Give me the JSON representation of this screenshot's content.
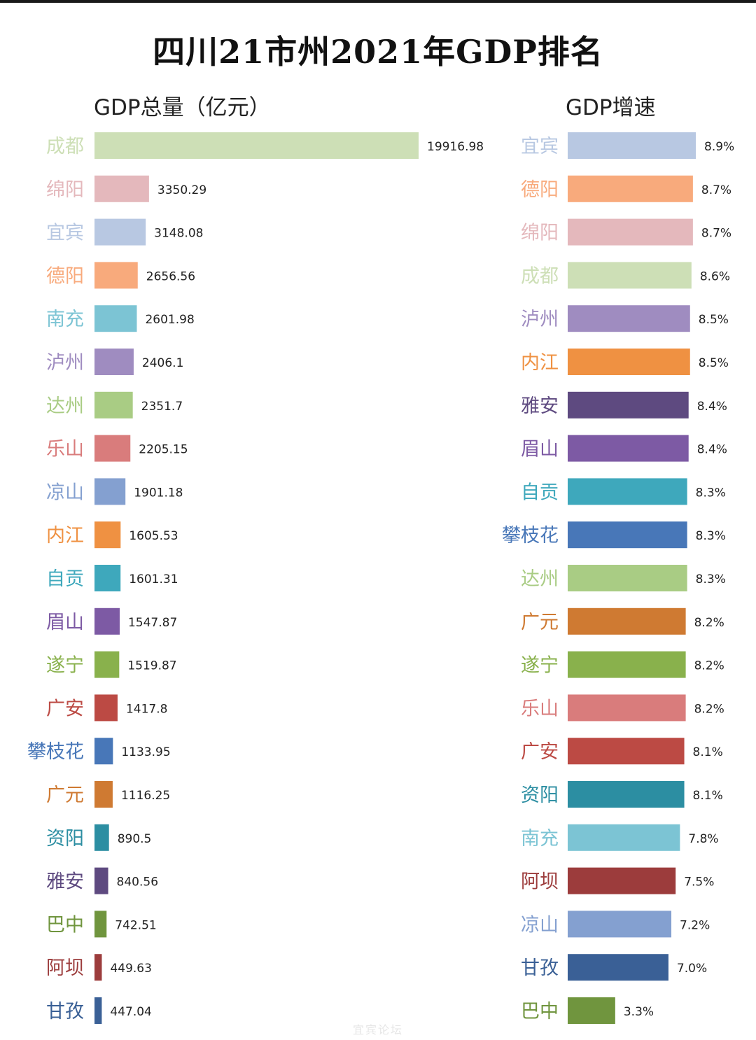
{
  "title": "四川21市州2021年GDP排名",
  "watermark": "宜宾论坛",
  "chart_data": [
    {
      "type": "bar",
      "orientation": "horizontal",
      "title": "GDP总量（亿元）",
      "categories": [
        "成都",
        "绵阳",
        "宜宾",
        "德阳",
        "南充",
        "泸州",
        "达州",
        "乐山",
        "凉山",
        "内江",
        "自贡",
        "眉山",
        "遂宁",
        "广安",
        "攀枝花",
        "广元",
        "资阳",
        "雅安",
        "巴中",
        "阿坝",
        "甘孜"
      ],
      "values": [
        19916.98,
        3350.29,
        3148.08,
        2656.56,
        2601.98,
        2406.1,
        2351.7,
        2205.15,
        1901.18,
        1605.53,
        1601.31,
        1547.87,
        1519.87,
        1417.8,
        1133.95,
        1116.25,
        890.5,
        840.56,
        742.51,
        449.63,
        447.04
      ],
      "value_labels": [
        "19916.98",
        "3350.29",
        "3148.08",
        "2656.56",
        "2601.98",
        "2406.1",
        "2351.7",
        "2205.15",
        "1901.18",
        "1605.53",
        "1601.31",
        "1547.87",
        "1519.87",
        "1417.8",
        "1133.95",
        "1116.25",
        "890.5",
        "840.56",
        "742.51",
        "449.63",
        "447.04"
      ],
      "colors": [
        "#cddfb6",
        "#e4b8bc",
        "#b8c8e2",
        "#f8aa7c",
        "#7cc4d4",
        "#9f8cc0",
        "#a9cc84",
        "#d97c7c",
        "#84a0d0",
        "#ef9142",
        "#3ea8bc",
        "#7d5aa4",
        "#89b14c",
        "#bc4a44",
        "#4877b8",
        "#cf7a32",
        "#2c8ea2",
        "#5e4a80",
        "#70953e",
        "#9c3c3c",
        "#3a6096"
      ],
      "grid": false,
      "legend": "none"
    },
    {
      "type": "bar",
      "orientation": "horizontal",
      "title": "GDP增速",
      "categories": [
        "宜宾",
        "德阳",
        "绵阳",
        "成都",
        "泸州",
        "内江",
        "雅安",
        "眉山",
        "自贡",
        "攀枝花",
        "达州",
        "广元",
        "遂宁",
        "乐山",
        "广安",
        "资阳",
        "南充",
        "阿坝",
        "凉山",
        "甘孜",
        "巴中"
      ],
      "values": [
        8.9,
        8.7,
        8.7,
        8.6,
        8.5,
        8.5,
        8.4,
        8.4,
        8.3,
        8.3,
        8.3,
        8.2,
        8.2,
        8.2,
        8.1,
        8.1,
        7.8,
        7.5,
        7.2,
        7.0,
        3.3
      ],
      "value_labels": [
        "8.9%",
        "8.7%",
        "8.7%",
        "8.6%",
        "8.5%",
        "8.5%",
        "8.4%",
        "8.4%",
        "8.3%",
        "8.3%",
        "8.3%",
        "8.2%",
        "8.2%",
        "8.2%",
        "8.1%",
        "8.1%",
        "7.8%",
        "7.5%",
        "7.2%",
        "7.0%",
        "3.3%"
      ],
      "colors": [
        "#b8c8e2",
        "#f8aa7c",
        "#e4b8bc",
        "#cddfb6",
        "#9f8cc0",
        "#ef9142",
        "#5e4a80",
        "#7d5aa4",
        "#3ea8bc",
        "#4877b8",
        "#a9cc84",
        "#cf7a32",
        "#89b14c",
        "#d97c7c",
        "#bc4a44",
        "#2c8ea2",
        "#7cc4d4",
        "#9c3c3c",
        "#84a0d0",
        "#3a6096",
        "#70953e"
      ],
      "grid": false,
      "legend": "none"
    }
  ]
}
